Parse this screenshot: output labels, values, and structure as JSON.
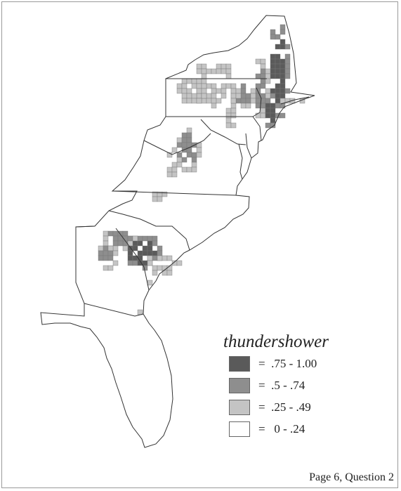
{
  "legend": {
    "title": "thundershower",
    "items": [
      {
        "label": "=  .75 - 1.00",
        "color": "#5a5a5a"
      },
      {
        "label": "=  .5 - .74",
        "color": "#8e8e8e"
      },
      {
        "label": "=  .25 - .49",
        "color": "#c4c4c4"
      },
      {
        "label": "=   0 - .24",
        "color": "#ffffff"
      }
    ]
  },
  "caption": "Page 6, Question 2"
}
